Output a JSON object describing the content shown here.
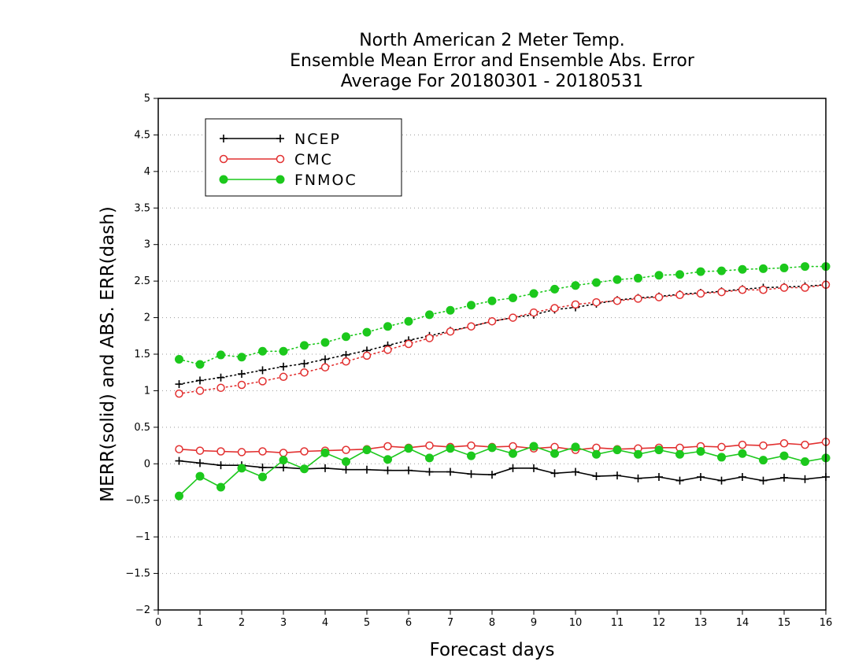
{
  "chart_data": {
    "type": "line",
    "title_lines": [
      "North American 2 Meter Temp.",
      "Ensemble Mean Error and Ensemble Abs. Error",
      "Average For 20180301 - 20180531"
    ],
    "xlabel": "Forecast days",
    "ylabel": "MERR(solid) and ABS. ERR(dash)",
    "xlim": [
      0,
      16
    ],
    "ylim": [
      -2,
      5
    ],
    "x_ticks": [
      "0",
      "1",
      "2",
      "3",
      "4",
      "5",
      "6",
      "7",
      "8",
      "9",
      "10",
      "11",
      "12",
      "13",
      "14",
      "15",
      "16"
    ],
    "y_ticks": [
      "-2",
      "-1.5",
      "-1",
      "-0.5",
      "0",
      "0.5",
      "1",
      "1.5",
      "2",
      "2.5",
      "3",
      "3.5",
      "4",
      "4.5",
      "5"
    ],
    "grid": "horizontal dotted",
    "legend_position": "top-left",
    "x": [
      0.5,
      1,
      1.5,
      2,
      2.5,
      3,
      3.5,
      4,
      4.5,
      5,
      5.5,
      6,
      6.5,
      7,
      7.5,
      8,
      8.5,
      9,
      9.5,
      10,
      10.5,
      11,
      11.5,
      12,
      12.5,
      13,
      13.5,
      14,
      14.5,
      15,
      15.5,
      16
    ],
    "series": [
      {
        "name": "NCEP",
        "color": "#000000",
        "marker": "plus",
        "merr": [
          0.04,
          0.01,
          -0.02,
          -0.02,
          -0.05,
          -0.05,
          -0.07,
          -0.06,
          -0.08,
          -0.08,
          -0.09,
          -0.09,
          -0.11,
          -0.11,
          -0.14,
          -0.15,
          -0.06,
          -0.06,
          -0.13,
          -0.11,
          -0.17,
          -0.16,
          -0.2,
          -0.18,
          -0.23,
          -0.18,
          -0.23,
          -0.18,
          -0.23,
          -0.19,
          -0.21,
          -0.18
        ],
        "abs_err": [
          1.09,
          1.14,
          1.18,
          1.23,
          1.28,
          1.33,
          1.37,
          1.43,
          1.49,
          1.55,
          1.62,
          1.69,
          1.75,
          1.82,
          1.88,
          1.95,
          2.0,
          2.04,
          2.11,
          2.14,
          2.19,
          2.24,
          2.27,
          2.29,
          2.32,
          2.34,
          2.36,
          2.39,
          2.41,
          2.42,
          2.43,
          2.45
        ]
      },
      {
        "name": "CMC",
        "color": "#e23030",
        "marker": "open-circle",
        "merr": [
          0.2,
          0.18,
          0.17,
          0.16,
          0.17,
          0.15,
          0.17,
          0.18,
          0.19,
          0.2,
          0.24,
          0.22,
          0.25,
          0.23,
          0.25,
          0.23,
          0.24,
          0.21,
          0.23,
          0.19,
          0.22,
          0.2,
          0.21,
          0.22,
          0.22,
          0.24,
          0.23,
          0.26,
          0.25,
          0.28,
          0.26,
          0.3
        ],
        "abs_err": [
          0.96,
          1.0,
          1.04,
          1.08,
          1.13,
          1.19,
          1.25,
          1.32,
          1.4,
          1.48,
          1.56,
          1.64,
          1.72,
          1.81,
          1.88,
          1.95,
          2.0,
          2.07,
          2.13,
          2.18,
          2.21,
          2.23,
          2.26,
          2.28,
          2.31,
          2.33,
          2.35,
          2.38,
          2.38,
          2.41,
          2.41,
          2.45
        ]
      },
      {
        "name": "FNMOC",
        "color": "#1cc81c",
        "marker": "filled-circle",
        "merr": [
          -0.44,
          -0.17,
          -0.32,
          -0.06,
          -0.18,
          0.05,
          -0.07,
          0.15,
          0.03,
          0.19,
          0.06,
          0.21,
          0.08,
          0.21,
          0.11,
          0.22,
          0.14,
          0.24,
          0.14,
          0.23,
          0.13,
          0.19,
          0.13,
          0.19,
          0.13,
          0.17,
          0.09,
          0.14,
          0.05,
          0.11,
          0.03,
          0.08
        ],
        "abs_err": [
          1.43,
          1.36,
          1.49,
          1.46,
          1.54,
          1.54,
          1.62,
          1.66,
          1.74,
          1.8,
          1.88,
          1.95,
          2.04,
          2.1,
          2.17,
          2.23,
          2.27,
          2.33,
          2.39,
          2.44,
          2.48,
          2.52,
          2.54,
          2.58,
          2.59,
          2.63,
          2.64,
          2.66,
          2.67,
          2.68,
          2.7,
          2.7
        ]
      }
    ]
  }
}
